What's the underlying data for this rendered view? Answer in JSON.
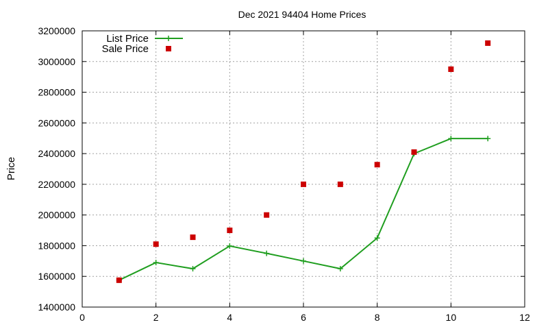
{
  "chart_data": {
    "type": "line",
    "title": "Dec 2021 94404 Home Prices",
    "ylabel": "Price",
    "xlim": [
      0,
      12
    ],
    "ylim": [
      1400000,
      3200000
    ],
    "x_ticks": [
      0,
      2,
      4,
      6,
      8,
      10,
      12
    ],
    "y_ticks": [
      1400000,
      1600000,
      1800000,
      2000000,
      2200000,
      2400000,
      2600000,
      2800000,
      3000000,
      3200000
    ],
    "grid": true,
    "legend_position": "top-left",
    "series": [
      {
        "name": "List Price",
        "style": "line-with-plus-markers",
        "color": "#1f9e1f",
        "x": [
          1,
          2,
          3,
          4,
          5,
          6,
          7,
          8,
          9,
          10,
          11
        ],
        "values": [
          1575000,
          1690000,
          1650000,
          1798000,
          1750000,
          1700000,
          1650000,
          1850000,
          2400000,
          2498000,
          2498000
        ]
      },
      {
        "name": "Sale Price",
        "style": "square-markers",
        "color": "#cc0000",
        "x": [
          1,
          2,
          3,
          4,
          5,
          6,
          7,
          8,
          9,
          10,
          11
        ],
        "values": [
          1575000,
          1810000,
          1855000,
          1900000,
          2000000,
          2200000,
          2200000,
          2328000,
          2410000,
          2950000,
          3120000
        ]
      }
    ]
  }
}
